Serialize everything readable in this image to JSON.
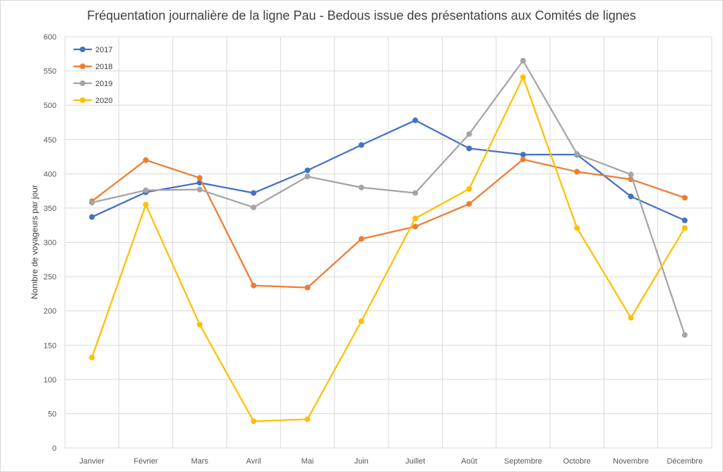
{
  "chart_data": {
    "type": "line",
    "title": "Fréquentation journalière de la ligne Pau - Bedous issue des présentations aux Comités de lignes",
    "xlabel": "",
    "ylabel": "Nombre de voyageurs par jour",
    "ylim": [
      0,
      600
    ],
    "ytick_step": 50,
    "grid": true,
    "legend_position": "top-left",
    "categories": [
      "Janvier",
      "Février",
      "Mars",
      "Avril",
      "Mai",
      "Juin",
      "Juillet",
      "Août",
      "Septembre",
      "Octobre",
      "Novembre",
      "Décembre"
    ],
    "series": [
      {
        "name": "2017",
        "color": "#4472c4",
        "values": [
          337,
          373,
          387,
          372,
          405,
          442,
          478,
          437,
          428,
          428,
          367,
          332
        ]
      },
      {
        "name": "2018",
        "color": "#ed7d31",
        "values": [
          360,
          420,
          394,
          237,
          234,
          305,
          323,
          356,
          421,
          403,
          392,
          365
        ]
      },
      {
        "name": "2019",
        "color": "#a5a5a5",
        "values": [
          358,
          376,
          377,
          351,
          396,
          380,
          372,
          458,
          565,
          429,
          399,
          165
        ]
      },
      {
        "name": "2020",
        "color": "#ffc000",
        "values": [
          132,
          355,
          180,
          39,
          42,
          185,
          335,
          378,
          541,
          321,
          190,
          321
        ]
      }
    ]
  }
}
